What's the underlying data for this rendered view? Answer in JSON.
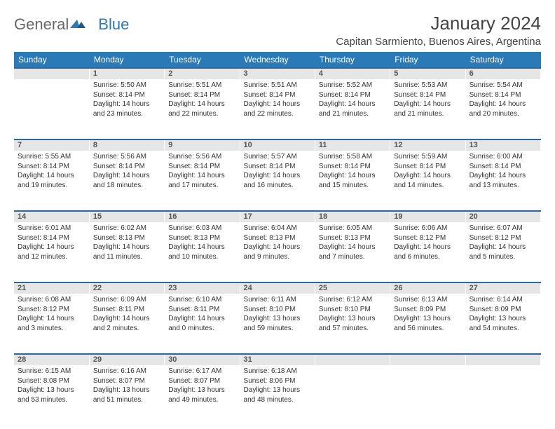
{
  "logo": {
    "text1": "General",
    "text2": "Blue"
  },
  "title": "January 2024",
  "location": "Capitan Sarmiento, Buenos Aires, Argentina",
  "colors": {
    "header_bg": "#2a7ab8",
    "daynum_bg": "#e6e6e6",
    "row_border": "#2a6aa0",
    "text": "#333333"
  },
  "day_headers": [
    "Sunday",
    "Monday",
    "Tuesday",
    "Wednesday",
    "Thursday",
    "Friday",
    "Saturday"
  ],
  "weeks": [
    {
      "nums": [
        "",
        "1",
        "2",
        "3",
        "4",
        "5",
        "6"
      ],
      "cells": [
        null,
        {
          "sunrise": "Sunrise: 5:50 AM",
          "sunset": "Sunset: 8:14 PM",
          "day1": "Daylight: 14 hours",
          "day2": "and 23 minutes."
        },
        {
          "sunrise": "Sunrise: 5:51 AM",
          "sunset": "Sunset: 8:14 PM",
          "day1": "Daylight: 14 hours",
          "day2": "and 22 minutes."
        },
        {
          "sunrise": "Sunrise: 5:51 AM",
          "sunset": "Sunset: 8:14 PM",
          "day1": "Daylight: 14 hours",
          "day2": "and 22 minutes."
        },
        {
          "sunrise": "Sunrise: 5:52 AM",
          "sunset": "Sunset: 8:14 PM",
          "day1": "Daylight: 14 hours",
          "day2": "and 21 minutes."
        },
        {
          "sunrise": "Sunrise: 5:53 AM",
          "sunset": "Sunset: 8:14 PM",
          "day1": "Daylight: 14 hours",
          "day2": "and 21 minutes."
        },
        {
          "sunrise": "Sunrise: 5:54 AM",
          "sunset": "Sunset: 8:14 PM",
          "day1": "Daylight: 14 hours",
          "day2": "and 20 minutes."
        }
      ]
    },
    {
      "nums": [
        "7",
        "8",
        "9",
        "10",
        "11",
        "12",
        "13"
      ],
      "cells": [
        {
          "sunrise": "Sunrise: 5:55 AM",
          "sunset": "Sunset: 8:14 PM",
          "day1": "Daylight: 14 hours",
          "day2": "and 19 minutes."
        },
        {
          "sunrise": "Sunrise: 5:56 AM",
          "sunset": "Sunset: 8:14 PM",
          "day1": "Daylight: 14 hours",
          "day2": "and 18 minutes."
        },
        {
          "sunrise": "Sunrise: 5:56 AM",
          "sunset": "Sunset: 8:14 PM",
          "day1": "Daylight: 14 hours",
          "day2": "and 17 minutes."
        },
        {
          "sunrise": "Sunrise: 5:57 AM",
          "sunset": "Sunset: 8:14 PM",
          "day1": "Daylight: 14 hours",
          "day2": "and 16 minutes."
        },
        {
          "sunrise": "Sunrise: 5:58 AM",
          "sunset": "Sunset: 8:14 PM",
          "day1": "Daylight: 14 hours",
          "day2": "and 15 minutes."
        },
        {
          "sunrise": "Sunrise: 5:59 AM",
          "sunset": "Sunset: 8:14 PM",
          "day1": "Daylight: 14 hours",
          "day2": "and 14 minutes."
        },
        {
          "sunrise": "Sunrise: 6:00 AM",
          "sunset": "Sunset: 8:14 PM",
          "day1": "Daylight: 14 hours",
          "day2": "and 13 minutes."
        }
      ]
    },
    {
      "nums": [
        "14",
        "15",
        "16",
        "17",
        "18",
        "19",
        "20"
      ],
      "cells": [
        {
          "sunrise": "Sunrise: 6:01 AM",
          "sunset": "Sunset: 8:14 PM",
          "day1": "Daylight: 14 hours",
          "day2": "and 12 minutes."
        },
        {
          "sunrise": "Sunrise: 6:02 AM",
          "sunset": "Sunset: 8:13 PM",
          "day1": "Daylight: 14 hours",
          "day2": "and 11 minutes."
        },
        {
          "sunrise": "Sunrise: 6:03 AM",
          "sunset": "Sunset: 8:13 PM",
          "day1": "Daylight: 14 hours",
          "day2": "and 10 minutes."
        },
        {
          "sunrise": "Sunrise: 6:04 AM",
          "sunset": "Sunset: 8:13 PM",
          "day1": "Daylight: 14 hours",
          "day2": "and 9 minutes."
        },
        {
          "sunrise": "Sunrise: 6:05 AM",
          "sunset": "Sunset: 8:13 PM",
          "day1": "Daylight: 14 hours",
          "day2": "and 7 minutes."
        },
        {
          "sunrise": "Sunrise: 6:06 AM",
          "sunset": "Sunset: 8:12 PM",
          "day1": "Daylight: 14 hours",
          "day2": "and 6 minutes."
        },
        {
          "sunrise": "Sunrise: 6:07 AM",
          "sunset": "Sunset: 8:12 PM",
          "day1": "Daylight: 14 hours",
          "day2": "and 5 minutes."
        }
      ]
    },
    {
      "nums": [
        "21",
        "22",
        "23",
        "24",
        "25",
        "26",
        "27"
      ],
      "cells": [
        {
          "sunrise": "Sunrise: 6:08 AM",
          "sunset": "Sunset: 8:12 PM",
          "day1": "Daylight: 14 hours",
          "day2": "and 3 minutes."
        },
        {
          "sunrise": "Sunrise: 6:09 AM",
          "sunset": "Sunset: 8:11 PM",
          "day1": "Daylight: 14 hours",
          "day2": "and 2 minutes."
        },
        {
          "sunrise": "Sunrise: 6:10 AM",
          "sunset": "Sunset: 8:11 PM",
          "day1": "Daylight: 14 hours",
          "day2": "and 0 minutes."
        },
        {
          "sunrise": "Sunrise: 6:11 AM",
          "sunset": "Sunset: 8:10 PM",
          "day1": "Daylight: 13 hours",
          "day2": "and 59 minutes."
        },
        {
          "sunrise": "Sunrise: 6:12 AM",
          "sunset": "Sunset: 8:10 PM",
          "day1": "Daylight: 13 hours",
          "day2": "and 57 minutes."
        },
        {
          "sunrise": "Sunrise: 6:13 AM",
          "sunset": "Sunset: 8:09 PM",
          "day1": "Daylight: 13 hours",
          "day2": "and 56 minutes."
        },
        {
          "sunrise": "Sunrise: 6:14 AM",
          "sunset": "Sunset: 8:09 PM",
          "day1": "Daylight: 13 hours",
          "day2": "and 54 minutes."
        }
      ]
    },
    {
      "nums": [
        "28",
        "29",
        "30",
        "31",
        "",
        "",
        ""
      ],
      "cells": [
        {
          "sunrise": "Sunrise: 6:15 AM",
          "sunset": "Sunset: 8:08 PM",
          "day1": "Daylight: 13 hours",
          "day2": "and 53 minutes."
        },
        {
          "sunrise": "Sunrise: 6:16 AM",
          "sunset": "Sunset: 8:07 PM",
          "day1": "Daylight: 13 hours",
          "day2": "and 51 minutes."
        },
        {
          "sunrise": "Sunrise: 6:17 AM",
          "sunset": "Sunset: 8:07 PM",
          "day1": "Daylight: 13 hours",
          "day2": "and 49 minutes."
        },
        {
          "sunrise": "Sunrise: 6:18 AM",
          "sunset": "Sunset: 8:06 PM",
          "day1": "Daylight: 13 hours",
          "day2": "and 48 minutes."
        },
        null,
        null,
        null
      ]
    }
  ]
}
